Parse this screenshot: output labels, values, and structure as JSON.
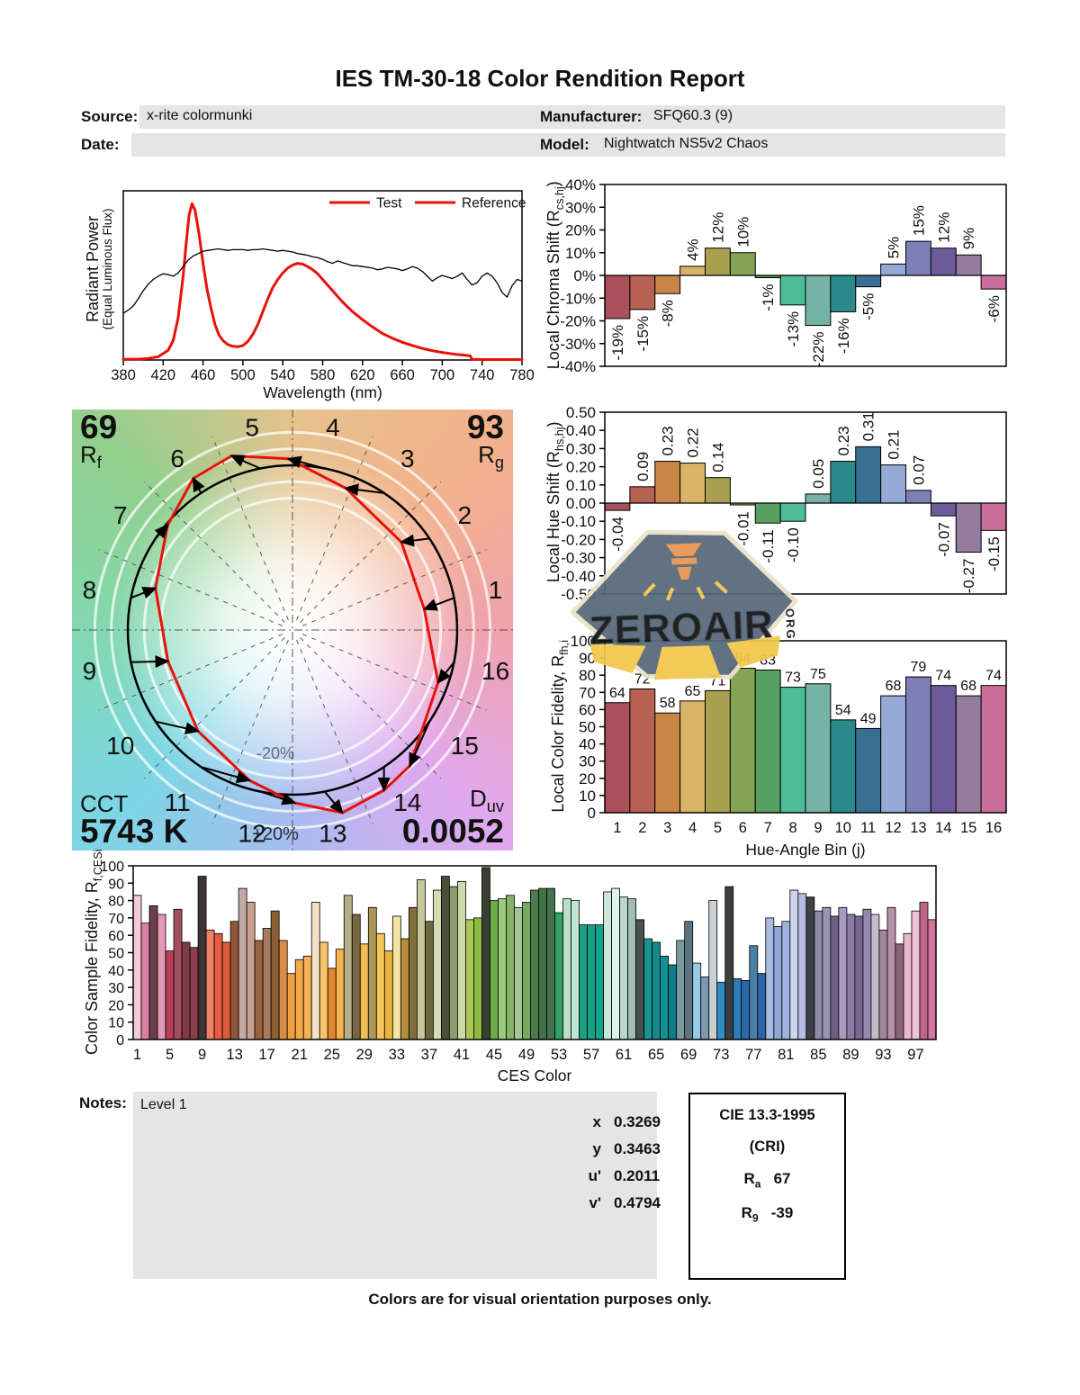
{
  "title": "IES TM-30-18 Color Rendition Report",
  "header": {
    "source_label": "Source:",
    "source": "x-rite colormunki",
    "date_label": "Date:",
    "date": "",
    "manufacturer_label": "Manufacturer:",
    "manufacturer": "SFQ60.3 (9)",
    "model_label": "Model:",
    "model": "Nightwatch NS5v2 Chaos"
  },
  "colors": {
    "test_red": "#e8120c",
    "reference_black": "#000000",
    "field_gray": "#e5e5e5",
    "bin_palette": [
      "#a8505c",
      "#b86155",
      "#c98448",
      "#d9b468",
      "#a8a04e",
      "#84a453",
      "#57a061",
      "#4cbd96",
      "#74b3a6",
      "#2b898b",
      "#3a6f94",
      "#94a9d6",
      "#7c80b6",
      "#6d5a9b",
      "#957c9f",
      "#ca6f9c"
    ]
  },
  "watermark": {
    "text": "ZEROAIR",
    "suffix": "ORG",
    "bg": "#57687a",
    "accent": "#e8944e",
    "beam": "#f2c84b",
    "border": "#eae2ca"
  },
  "chart_data": [
    {
      "id": "spd",
      "type": "line",
      "xlabel": "Wavelength (nm)",
      "ylabel": "Radiant Power",
      "ylabel2": "(Equal Luminous Flux)",
      "xlim": [
        380,
        780
      ],
      "ylim": [
        0,
        1.05
      ],
      "xticks": [
        380,
        420,
        460,
        500,
        540,
        580,
        620,
        660,
        700,
        740,
        780
      ],
      "legend": [
        {
          "name": "Test",
          "line": "#e8120c",
          "text": "#e8120c"
        },
        {
          "name": "Reference",
          "line": "#e8120c",
          "text": "#000000"
        }
      ],
      "series": [
        {
          "name": "Test",
          "color": "#e8120c",
          "width": 3,
          "points": [
            [
              380,
              0.005
            ],
            [
              395,
              0.005
            ],
            [
              405,
              0.01
            ],
            [
              415,
              0.02
            ],
            [
              425,
              0.06
            ],
            [
              430,
              0.12
            ],
            [
              435,
              0.26
            ],
            [
              440,
              0.52
            ],
            [
              443,
              0.72
            ],
            [
              446,
              0.9
            ],
            [
              449,
              0.97
            ],
            [
              452,
              0.93
            ],
            [
              456,
              0.78
            ],
            [
              460,
              0.6
            ],
            [
              464,
              0.44
            ],
            [
              468,
              0.32
            ],
            [
              472,
              0.22
            ],
            [
              476,
              0.155
            ],
            [
              480,
              0.12
            ],
            [
              485,
              0.095
            ],
            [
              490,
              0.085
            ],
            [
              495,
              0.082
            ],
            [
              500,
              0.09
            ],
            [
              505,
              0.115
            ],
            [
              510,
              0.16
            ],
            [
              515,
              0.22
            ],
            [
              520,
              0.3
            ],
            [
              525,
              0.38
            ],
            [
              530,
              0.45
            ],
            [
              535,
              0.5
            ],
            [
              540,
              0.54
            ],
            [
              545,
              0.57
            ],
            [
              550,
              0.59
            ],
            [
              555,
              0.6
            ],
            [
              560,
              0.595
            ],
            [
              565,
              0.58
            ],
            [
              570,
              0.56
            ],
            [
              575,
              0.535
            ],
            [
              580,
              0.5
            ],
            [
              585,
              0.465
            ],
            [
              590,
              0.43
            ],
            [
              595,
              0.395
            ],
            [
              600,
              0.36
            ],
            [
              610,
              0.3
            ],
            [
              620,
              0.25
            ],
            [
              630,
              0.205
            ],
            [
              640,
              0.165
            ],
            [
              650,
              0.135
            ],
            [
              660,
              0.11
            ],
            [
              670,
              0.09
            ],
            [
              680,
              0.072
            ],
            [
              690,
              0.058
            ],
            [
              700,
              0.047
            ],
            [
              710,
              0.038
            ],
            [
              715,
              0.034
            ],
            [
              720,
              0.031
            ],
            [
              725,
              0.028
            ],
            [
              728,
              0.026
            ],
            [
              730,
              0.004
            ],
            [
              740,
              0.003
            ],
            [
              760,
              0.003
            ],
            [
              780,
              0.003
            ]
          ]
        },
        {
          "name": "Reference",
          "color": "#000000",
          "width": 1.3,
          "points": [
            [
              380,
              0.29
            ],
            [
              385,
              0.31
            ],
            [
              390,
              0.335
            ],
            [
              395,
              0.38
            ],
            [
              400,
              0.43
            ],
            [
              405,
              0.47
            ],
            [
              410,
              0.5
            ],
            [
              415,
              0.52
            ],
            [
              420,
              0.535
            ],
            [
              425,
              0.53
            ],
            [
              430,
              0.52
            ],
            [
              435,
              0.54
            ],
            [
              440,
              0.58
            ],
            [
              445,
              0.62
            ],
            [
              450,
              0.645
            ],
            [
              455,
              0.66
            ],
            [
              460,
              0.675
            ],
            [
              465,
              0.68
            ],
            [
              470,
              0.685
            ],
            [
              475,
              0.69
            ],
            [
              480,
              0.685
            ],
            [
              485,
              0.68
            ],
            [
              490,
              0.685
            ],
            [
              495,
              0.685
            ],
            [
              500,
              0.685
            ],
            [
              505,
              0.68
            ],
            [
              510,
              0.685
            ],
            [
              515,
              0.685
            ],
            [
              520,
              0.69
            ],
            [
              525,
              0.685
            ],
            [
              530,
              0.68
            ],
            [
              535,
              0.675
            ],
            [
              540,
              0.68
            ],
            [
              545,
              0.675
            ],
            [
              550,
              0.67
            ],
            [
              555,
              0.66
            ],
            [
              560,
              0.655
            ],
            [
              565,
              0.65
            ],
            [
              570,
              0.64
            ],
            [
              575,
              0.635
            ],
            [
              580,
              0.625
            ],
            [
              585,
              0.61
            ],
            [
              590,
              0.6
            ],
            [
              595,
              0.615
            ],
            [
              600,
              0.605
            ],
            [
              605,
              0.595
            ],
            [
              610,
              0.585
            ],
            [
              615,
              0.585
            ],
            [
              620,
              0.58
            ],
            [
              625,
              0.575
            ],
            [
              630,
              0.57
            ],
            [
              635,
              0.56
            ],
            [
              640,
              0.565
            ],
            [
              645,
              0.575
            ],
            [
              650,
              0.57
            ],
            [
              655,
              0.565
            ],
            [
              660,
              0.555
            ],
            [
              665,
              0.565
            ],
            [
              670,
              0.58
            ],
            [
              675,
              0.57
            ],
            [
              680,
              0.55
            ],
            [
              685,
              0.52
            ],
            [
              690,
              0.49
            ],
            [
              695,
              0.51
            ],
            [
              700,
              0.525
            ],
            [
              705,
              0.515
            ],
            [
              710,
              0.505
            ],
            [
              715,
              0.52
            ],
            [
              720,
              0.54
            ],
            [
              725,
              0.5
            ],
            [
              730,
              0.465
            ],
            [
              735,
              0.48
            ],
            [
              740,
              0.52
            ],
            [
              745,
              0.54
            ],
            [
              750,
              0.52
            ],
            [
              755,
              0.48
            ],
            [
              760,
              0.42
            ],
            [
              765,
              0.39
            ],
            [
              770,
              0.46
            ],
            [
              775,
              0.5
            ],
            [
              780,
              0.49
            ]
          ]
        }
      ]
    },
    {
      "id": "chroma_shift",
      "type": "bar",
      "ylabel": "Local Chroma Shift (R_{cs,hj})",
      "ylim": [
        -40,
        40
      ],
      "ystep": 10,
      "unit": "%",
      "categories": [
        1,
        2,
        3,
        4,
        5,
        6,
        7,
        8,
        9,
        10,
        11,
        12,
        13,
        14,
        15,
        16
      ],
      "values": [
        -19,
        -15,
        -8,
        4,
        12,
        10,
        -1,
        -13,
        -22,
        -16,
        -5,
        5,
        15,
        12,
        9,
        -6
      ]
    },
    {
      "id": "color_vector_graphic",
      "type": "polar_vector",
      "rf": "69",
      "rf_label": "R_{f}",
      "rg": "93",
      "rg_label": "R_{g}",
      "cct_label": "CCT",
      "cct": "5743 K",
      "duv_label": "D_{uv}",
      "duv": "0.0052",
      "bins": [
        1,
        2,
        3,
        4,
        5,
        6,
        7,
        8,
        9,
        10,
        11,
        12,
        13,
        14,
        15,
        16
      ],
      "chroma_shift_pct": [
        -19,
        -15,
        -8,
        4,
        12,
        10,
        -1,
        -13,
        -22,
        -16,
        -5,
        5,
        15,
        12,
        9,
        -6
      ],
      "hue_shift": [
        -0.04,
        0.09,
        0.23,
        0.22,
        0.14,
        -0.01,
        -0.11,
        -0.1,
        0.05,
        0.23,
        0.31,
        0.21,
        0.07,
        -0.07,
        -0.27,
        -0.15
      ],
      "ring_labels": {
        "plus": "+20%",
        "minus": "-20%"
      }
    },
    {
      "id": "hue_shift",
      "type": "bar",
      "ylabel": "Local Hue Shift (R_{hs,hj})",
      "ylim": [
        -0.5,
        0.5
      ],
      "ystep": 0.1,
      "categories": [
        1,
        2,
        3,
        4,
        5,
        6,
        7,
        8,
        9,
        10,
        11,
        12,
        13,
        14,
        15,
        16
      ],
      "values": [
        -0.04,
        0.09,
        0.23,
        0.22,
        0.14,
        -0.01,
        -0.11,
        -0.1,
        0.05,
        0.23,
        0.31,
        0.21,
        0.07,
        -0.07,
        -0.27,
        -0.15
      ]
    },
    {
      "id": "local_fidelity",
      "type": "bar",
      "ylabel": "Local Color Fidelity, R_{fh,i}",
      "xlabel": "Hue-Angle Bin (j)",
      "ylim": [
        0,
        100
      ],
      "ystep": 10,
      "categories": [
        1,
        2,
        3,
        4,
        5,
        6,
        7,
        8,
        9,
        10,
        11,
        12,
        13,
        14,
        15,
        16
      ],
      "values": [
        64,
        72,
        58,
        65,
        71,
        84,
        83,
        73,
        75,
        54,
        49,
        68,
        79,
        74,
        68,
        74
      ]
    },
    {
      "id": "ces_fidelity",
      "type": "bar",
      "ylabel": "Color Sample Fidelity, R_{f,CESi}",
      "xlabel": "CES Color",
      "ylim": [
        0,
        100
      ],
      "ystep": 10,
      "xtick_every": 4,
      "values": [
        83,
        67,
        77,
        72,
        51,
        75,
        56,
        53,
        94,
        63,
        61,
        56,
        68,
        87,
        79,
        57,
        64,
        74,
        57,
        38,
        46,
        48,
        79,
        56,
        41,
        52,
        83,
        72,
        55,
        76,
        61,
        51,
        71,
        58,
        76,
        92,
        68,
        86,
        94,
        88,
        91,
        69,
        70,
        99,
        80,
        81,
        83,
        76,
        79,
        86,
        87,
        87,
        73,
        81,
        80,
        66,
        66,
        66,
        85,
        87,
        82,
        81,
        69,
        58,
        56,
        48,
        43,
        57,
        68,
        44,
        36,
        80,
        33,
        88,
        35,
        34,
        54,
        38,
        70,
        65,
        68,
        86,
        84,
        82,
        74,
        76,
        71,
        76,
        72,
        71,
        75,
        72,
        63,
        76,
        55,
        61,
        74,
        79,
        69
      ],
      "colors": [
        "#f4c9da",
        "#da7fa4",
        "#6b4048",
        "#e397b9",
        "#b93f59",
        "#a14f60",
        "#7e3a46",
        "#8c3e4a",
        "#3d3435",
        "#f08166",
        "#e55c45",
        "#de5a3e",
        "#92573b",
        "#c2aaa6",
        "#c99f8e",
        "#9a6442",
        "#aa7a5e",
        "#8d5e36",
        "#d98c44",
        "#ef9f3e",
        "#f2a947",
        "#f4b157",
        "#f0e2c2",
        "#f6c26c",
        "#e0892c",
        "#f4b44e",
        "#b7ae87",
        "#786640",
        "#f2bd52",
        "#aa9759",
        "#f4c558",
        "#e9b440",
        "#f1e4a2",
        "#b28e37",
        "#7f6f3c",
        "#c6c89c",
        "#6c683f",
        "#d6dbb2",
        "#4b4e3a",
        "#8c9c6c",
        "#ced8aa",
        "#aac656",
        "#8cba3e",
        "#394032",
        "#6caa4a",
        "#9aca7a",
        "#86b26c",
        "#a6c692",
        "#76aa64",
        "#4c7c4c",
        "#417147",
        "#44724e",
        "#31a06a",
        "#badfc6",
        "#c1e6d4",
        "#1aa183",
        "#18a087",
        "#16a18c",
        "#c8e8da",
        "#ddf2e8",
        "#b8d8cc",
        "#a0bcb4",
        "#45514f",
        "#1a9490",
        "#15898c",
        "#0f9196",
        "#0c7e88",
        "#7a9aa0",
        "#5c7482",
        "#96cbe8",
        "#7c99ad",
        "#c9cfd2",
        "#2f8fc4",
        "#3b3f42",
        "#2b7cb8",
        "#2a6aa8",
        "#4880a8",
        "#2f64a4",
        "#aabcdf",
        "#8ea6d4",
        "#9fb2dd",
        "#ccd4ee",
        "#b8bce4",
        "#3e4045",
        "#8d87a8",
        "#9b92b4",
        "#6e5f84",
        "#a89ac4",
        "#8d7aa4",
        "#7a6692",
        "#9788b0",
        "#c3bccb",
        "#a08798",
        "#b890a8",
        "#8a6478",
        "#e8b8cc",
        "#edc2d4",
        "#c06488",
        "#d2749c"
      ]
    }
  ],
  "notes": {
    "label": "Notes:",
    "content": "Level 1"
  },
  "chromaticity": {
    "rows": [
      {
        "label": "x",
        "value": "0.3269"
      },
      {
        "label": "y",
        "value": "0.3463"
      },
      {
        "label": "u'",
        "value": "0.2011"
      },
      {
        "label": "v'",
        "value": "0.4794"
      }
    ]
  },
  "cri": {
    "title": "CIE 13.3-1995",
    "subtitle": "(CRI)",
    "rows": [
      {
        "base": "R",
        "sub": "a",
        "value": "67"
      },
      {
        "base": "R",
        "sub": "9",
        "value": "-39"
      }
    ]
  },
  "footer": "Colors are for visual orientation purposes only."
}
